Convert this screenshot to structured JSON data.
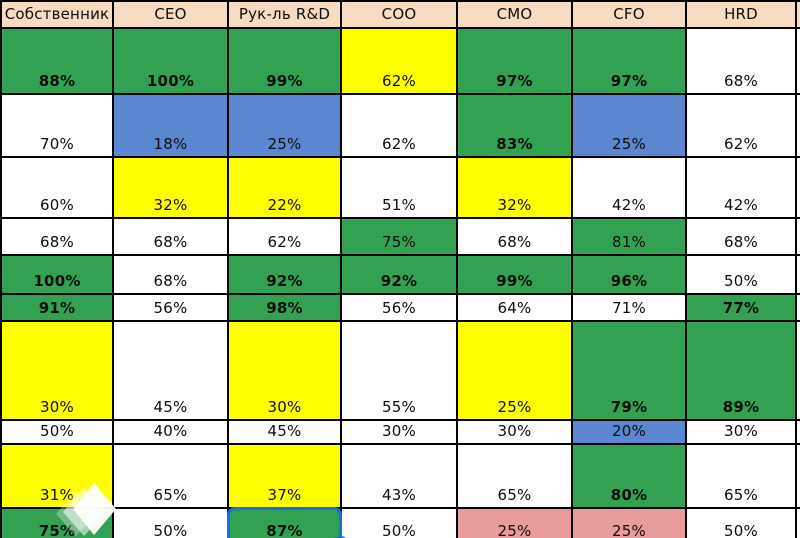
{
  "table": {
    "columns": [
      "Собственник",
      "CEO",
      "Рук-ль R&D",
      "COO",
      "CMO",
      "CFO",
      "HRD"
    ],
    "rows": [
      {
        "cells": [
          {
            "v": "88%",
            "bg": "green",
            "b": true
          },
          {
            "v": "100%",
            "bg": "green",
            "b": true
          },
          {
            "v": "99%",
            "bg": "green",
            "b": true
          },
          {
            "v": "62%",
            "bg": "yellow",
            "b": false
          },
          {
            "v": "97%",
            "bg": "green",
            "b": true
          },
          {
            "v": "97%",
            "bg": "green",
            "b": true
          },
          {
            "v": "68%",
            "bg": "white",
            "b": false
          }
        ]
      },
      {
        "cells": [
          {
            "v": "70%",
            "bg": "white",
            "b": false
          },
          {
            "v": "18%",
            "bg": "blue",
            "b": false
          },
          {
            "v": "25%",
            "bg": "blue",
            "b": false
          },
          {
            "v": "62%",
            "bg": "white",
            "b": false
          },
          {
            "v": "83%",
            "bg": "green",
            "b": true
          },
          {
            "v": "25%",
            "bg": "blue",
            "b": false
          },
          {
            "v": "62%",
            "bg": "white",
            "b": false
          }
        ]
      },
      {
        "cells": [
          {
            "v": "60%",
            "bg": "white",
            "b": false
          },
          {
            "v": "32%",
            "bg": "yellow",
            "b": false
          },
          {
            "v": "22%",
            "bg": "yellow",
            "b": false
          },
          {
            "v": "51%",
            "bg": "white",
            "b": false
          },
          {
            "v": "32%",
            "bg": "yellow",
            "b": false
          },
          {
            "v": "42%",
            "bg": "white",
            "b": false
          },
          {
            "v": "42%",
            "bg": "white",
            "b": false
          }
        ]
      },
      {
        "cells": [
          {
            "v": "68%",
            "bg": "white",
            "b": false
          },
          {
            "v": "68%",
            "bg": "white",
            "b": false
          },
          {
            "v": "62%",
            "bg": "white",
            "b": false
          },
          {
            "v": "75%",
            "bg": "green",
            "b": false
          },
          {
            "v": "68%",
            "bg": "white",
            "b": false
          },
          {
            "v": "81%",
            "bg": "green",
            "b": false
          },
          {
            "v": "68%",
            "bg": "white",
            "b": false
          }
        ]
      },
      {
        "cells": [
          {
            "v": "100%",
            "bg": "green",
            "b": true
          },
          {
            "v": "68%",
            "bg": "white",
            "b": false
          },
          {
            "v": "92%",
            "bg": "green",
            "b": true
          },
          {
            "v": "92%",
            "bg": "green",
            "b": true
          },
          {
            "v": "99%",
            "bg": "green",
            "b": true
          },
          {
            "v": "96%",
            "bg": "green",
            "b": true
          },
          {
            "v": "50%",
            "bg": "white",
            "b": false
          }
        ]
      },
      {
        "cells": [
          {
            "v": "91%",
            "bg": "green",
            "b": true
          },
          {
            "v": "56%",
            "bg": "white",
            "b": false
          },
          {
            "v": "98%",
            "bg": "green",
            "b": true
          },
          {
            "v": "56%",
            "bg": "white",
            "b": false
          },
          {
            "v": "64%",
            "bg": "white",
            "b": false
          },
          {
            "v": "71%",
            "bg": "white",
            "b": false
          },
          {
            "v": "77%",
            "bg": "green",
            "b": true
          }
        ]
      },
      {
        "cells": [
          {
            "v": "30%",
            "bg": "yellow",
            "b": false
          },
          {
            "v": "45%",
            "bg": "white",
            "b": false
          },
          {
            "v": "30%",
            "bg": "yellow",
            "b": false
          },
          {
            "v": "55%",
            "bg": "white",
            "b": false
          },
          {
            "v": "25%",
            "bg": "yellow",
            "b": false
          },
          {
            "v": "79%",
            "bg": "green",
            "b": true
          },
          {
            "v": "89%",
            "bg": "green",
            "b": true
          }
        ]
      },
      {
        "cells": [
          {
            "v": "50%",
            "bg": "white",
            "b": false
          },
          {
            "v": "40%",
            "bg": "white",
            "b": false
          },
          {
            "v": "45%",
            "bg": "white",
            "b": false
          },
          {
            "v": "30%",
            "bg": "white",
            "b": false
          },
          {
            "v": "30%",
            "bg": "white",
            "b": false
          },
          {
            "v": "20%",
            "bg": "blue",
            "b": false
          },
          {
            "v": "30%",
            "bg": "white",
            "b": false
          }
        ]
      },
      {
        "cells": [
          {
            "v": "31%",
            "bg": "yellow",
            "b": false
          },
          {
            "v": "65%",
            "bg": "white",
            "b": false
          },
          {
            "v": "37%",
            "bg": "yellow",
            "b": false
          },
          {
            "v": "43%",
            "bg": "white",
            "b": false
          },
          {
            "v": "65%",
            "bg": "white",
            "b": false
          },
          {
            "v": "80%",
            "bg": "green",
            "b": true
          },
          {
            "v": "65%",
            "bg": "white",
            "b": false
          }
        ]
      },
      {
        "cells": [
          {
            "v": "75%",
            "bg": "green",
            "b": true
          },
          {
            "v": "50%",
            "bg": "white",
            "b": false
          },
          {
            "v": "87%",
            "bg": "green",
            "b": true,
            "selected": true
          },
          {
            "v": "50%",
            "bg": "white",
            "b": false
          },
          {
            "v": "25%",
            "bg": "pink",
            "b": false
          },
          {
            "v": "25%",
            "bg": "pink",
            "b": false
          },
          {
            "v": "50%",
            "bg": "white",
            "b": false
          }
        ]
      }
    ]
  },
  "selection": {
    "row": 10,
    "col": 3,
    "value": "87%"
  },
  "colors": {
    "green": "#33a152",
    "yellow": "#ffff00",
    "blue": "#5b87d1",
    "pink": "#e89c9c",
    "white": "#ffffff",
    "header_bg": "#f8dcc0",
    "selection_blue": "#1a6fe0",
    "grid_border": "#000000"
  },
  "icons": {
    "watermark": "layered-diamond-logo"
  }
}
